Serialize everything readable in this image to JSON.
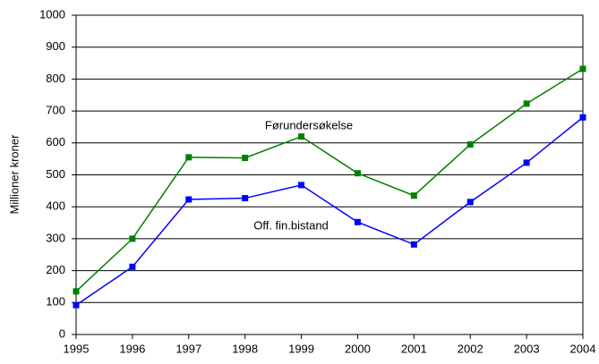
{
  "chart_data": {
    "type": "line",
    "y_label": "Millioner kroner",
    "x": [
      1995,
      1996,
      1997,
      1998,
      1999,
      2000,
      2001,
      2002,
      2003,
      2004
    ],
    "xlim": [
      1995,
      2004
    ],
    "xticks": [
      1995,
      1996,
      1997,
      1998,
      1999,
      2000,
      2001,
      2002,
      2003,
      2004
    ],
    "ylim": [
      0,
      1000
    ],
    "yticks": [
      0,
      100,
      200,
      300,
      400,
      500,
      600,
      700,
      800,
      900,
      1000
    ],
    "grid": true,
    "series": [
      {
        "name": "Førundersøkelse",
        "color": "#008000",
        "values": [
          135,
          300,
          555,
          553,
          620,
          505,
          435,
          595,
          723,
          832
        ]
      },
      {
        "name": "Off. fin.bistand",
        "color": "#0000ff",
        "values": [
          92,
          212,
          423,
          427,
          468,
          352,
          282,
          415,
          538,
          680
        ]
      }
    ]
  }
}
